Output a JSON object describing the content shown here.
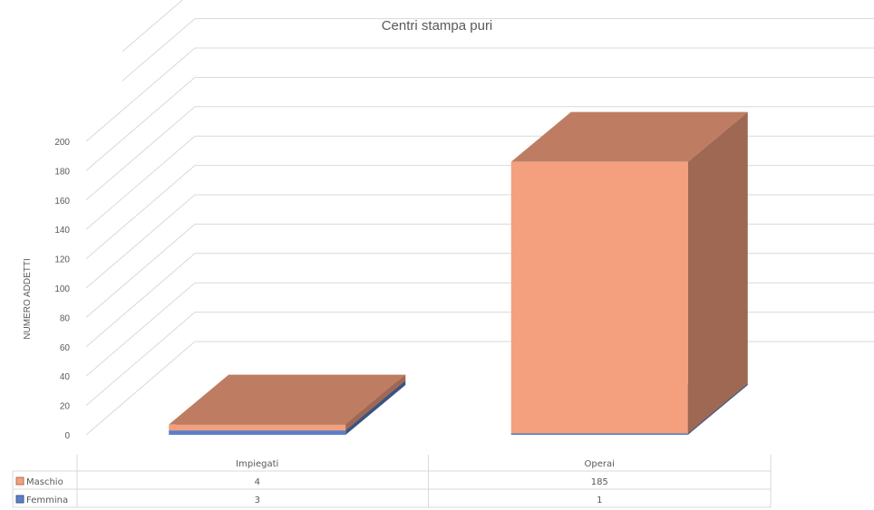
{
  "chart_data": {
    "type": "bar",
    "title": "Centri stampa puri",
    "ylabel": "NUMERO ADDETTI",
    "xlabel": "",
    "categories": [
      "Impiegati",
      "Operai"
    ],
    "series": [
      {
        "name": "Maschio",
        "values": [
          4,
          185
        ],
        "color": "#F4A07E"
      },
      {
        "name": "Femmina",
        "values": [
          3,
          1
        ],
        "color": "#5B7FC7"
      }
    ],
    "stacked": true,
    "ylim": [
      0,
      200
    ],
    "yticks": [
      0,
      20,
      40,
      60,
      80,
      100,
      120,
      140,
      160,
      180,
      200
    ],
    "grid": true,
    "legend": "data-table-bottom",
    "style": "3d-column"
  }
}
